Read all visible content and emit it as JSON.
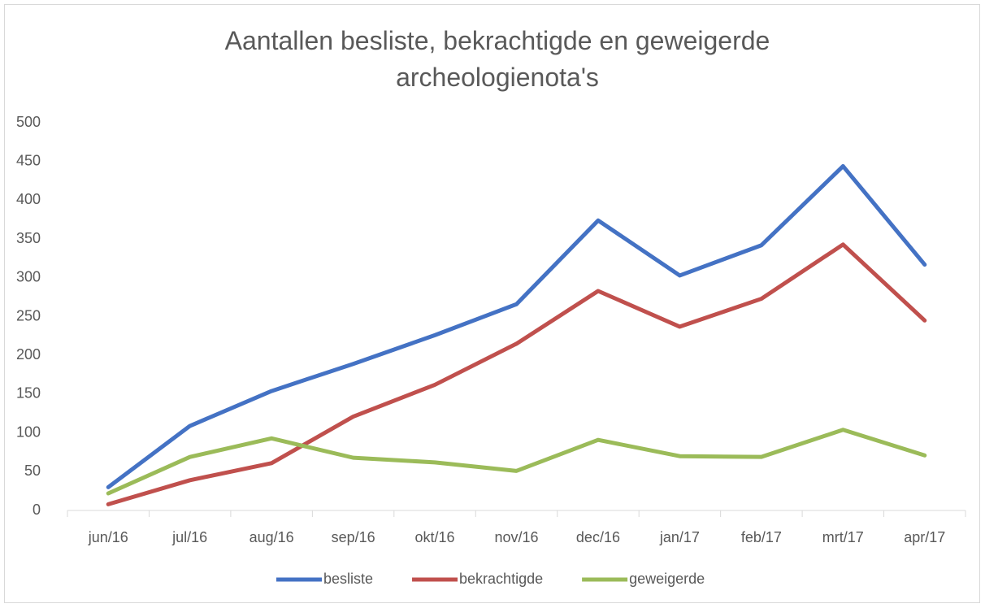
{
  "chart_data": {
    "type": "line",
    "title": "Aantallen besliste, bekrachtigde en geweigerde archeologienota's",
    "categories": [
      "jun/16",
      "jul/16",
      "aug/16",
      "sep/16",
      "okt/16",
      "nov/16",
      "dec/16",
      "jan/17",
      "feb/17",
      "mrt/17",
      "apr/17"
    ],
    "series": [
      {
        "name": "besliste",
        "color": "#4472c4",
        "values": [
          30,
          109,
          154,
          189,
          226,
          266,
          374,
          303,
          342,
          444,
          317
        ]
      },
      {
        "name": "bekrachtigde",
        "color": "#c0504d",
        "values": [
          8,
          39,
          61,
          121,
          162,
          215,
          283,
          237,
          273,
          343,
          245
        ]
      },
      {
        "name": "geweigerde",
        "color": "#9bbb59",
        "values": [
          22,
          69,
          93,
          68,
          62,
          51,
          91,
          70,
          69,
          104,
          71
        ]
      }
    ],
    "ylim": [
      0,
      500
    ],
    "yticks": [
      0,
      50,
      100,
      150,
      200,
      250,
      300,
      350,
      400,
      450,
      500
    ],
    "grid": false,
    "legend": "bottom"
  }
}
